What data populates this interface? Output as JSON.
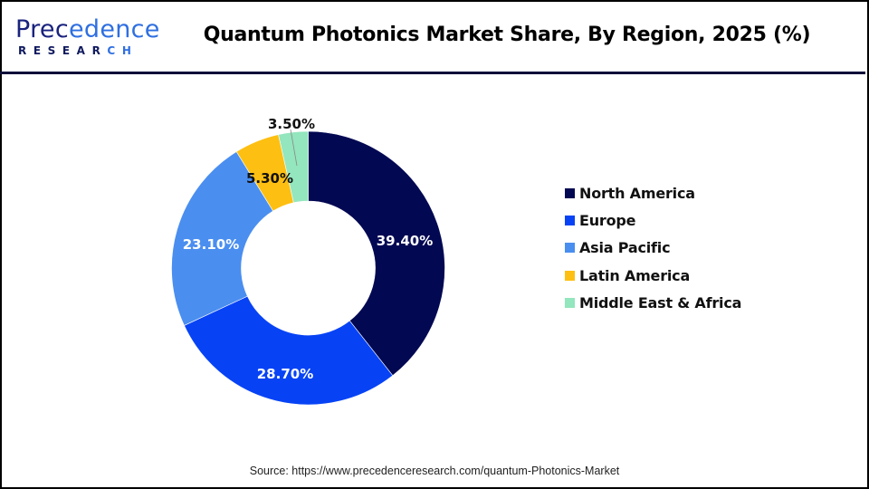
{
  "logo": {
    "main_head": "Prec",
    "main_tail": "edence",
    "sub_head": "RESEAR",
    "sub_tail": "CH"
  },
  "title": "Quantum Photonics Market Share, By Region, 2025 (%)",
  "source": "Source: https://www.precedenceresearch.com/quantum-Photonics-Market",
  "colors": {
    "north_america": "#020852",
    "europe": "#0743f5",
    "asia_pacific": "#4a8ef0",
    "latin_america": "#fdbf12",
    "middle_east_africa": "#93e6bd"
  },
  "chart_data": {
    "type": "pie",
    "subtype": "donut",
    "title": "Quantum Photonics Market Share, By Region, 2025 (%)",
    "categories": [
      "North America",
      "Europe",
      "Asia Pacific",
      "Latin America",
      "Middle East & Africa"
    ],
    "values": [
      39.4,
      28.7,
      23.1,
      5.3,
      3.5
    ],
    "labels": [
      "39.40%",
      "28.70%",
      "23.10%",
      "5.30%",
      "3.50%"
    ],
    "colors": [
      "#020852",
      "#0743f5",
      "#4a8ef0",
      "#fdbf12",
      "#93e6bd"
    ],
    "start_angle": "12 o'clock, clockwise",
    "legend_position": "right",
    "unit": "%"
  },
  "legend": {
    "items": [
      {
        "label": "North America",
        "color": "#020852"
      },
      {
        "label": "Europe",
        "color": "#0743f5"
      },
      {
        "label": "Asia Pacific",
        "color": "#4a8ef0"
      },
      {
        "label": "Latin America",
        "color": "#fdbf12"
      },
      {
        "label": "Middle East & Africa",
        "color": "#93e6bd"
      }
    ]
  }
}
